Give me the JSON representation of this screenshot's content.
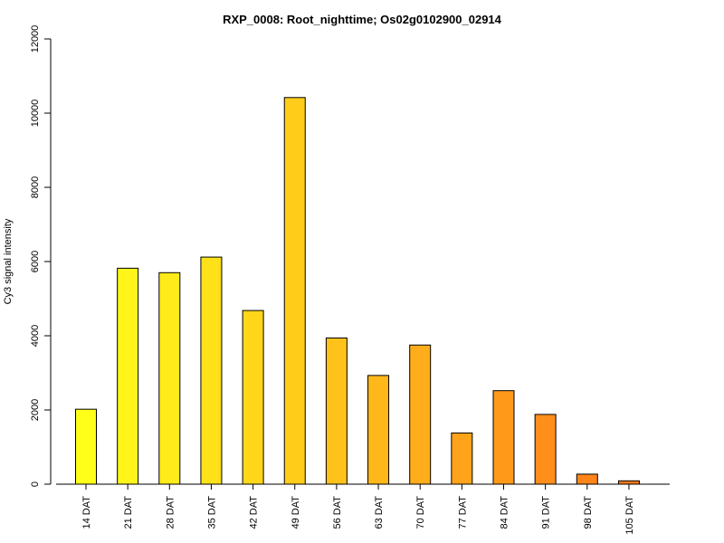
{
  "chart_data": {
    "type": "bar",
    "title": "RXP_0008: Root_nighttime; Os02g0102900_02914",
    "xlabel": "",
    "ylabel": "Cy3 signal intensity",
    "ylim": [
      0,
      12000
    ],
    "yticks": [
      0,
      2000,
      4000,
      6000,
      8000,
      10000,
      12000
    ],
    "categories": [
      "14 DAT",
      "21 DAT",
      "28 DAT",
      "35 DAT",
      "42 DAT",
      "49 DAT",
      "56 DAT",
      "63 DAT",
      "70 DAT",
      "77 DAT",
      "84 DAT",
      "91 DAT",
      "98 DAT",
      "105 DAT"
    ],
    "values": [
      2020,
      5820,
      5700,
      6120,
      4680,
      10420,
      3940,
      2930,
      3750,
      1380,
      2520,
      1880,
      270,
      90
    ],
    "colors": [
      "#FFFF1A",
      "#FFF51A",
      "#FFEB1A",
      "#FFE11A",
      "#FFD61A",
      "#FFCC1A",
      "#FFC21A",
      "#FFB81A",
      "#FFAD1A",
      "#FFA31A",
      "#FF991A",
      "#FF8F1A",
      "#FF851A",
      "#FF7A1A"
    ]
  }
}
